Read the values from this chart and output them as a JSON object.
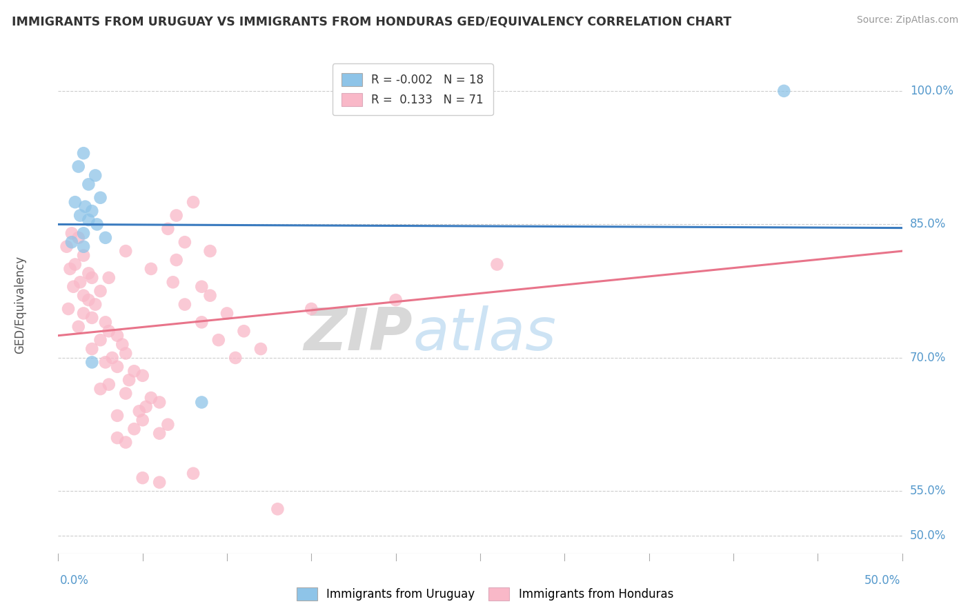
{
  "title": "IMMIGRANTS FROM URUGUAY VS IMMIGRANTS FROM HONDURAS GED/EQUIVALENCY CORRELATION CHART",
  "source": "Source: ZipAtlas.com",
  "ylabel": "GED/Equivalency",
  "ytick_vals": [
    50.0,
    55.0,
    70.0,
    85.0,
    100.0
  ],
  "ytick_labels": [
    "50.0%",
    "55.0%",
    "70.0%",
    "85.0%",
    "100.0%"
  ],
  "xmin": 0.0,
  "xmax": 50.0,
  "ymin": 48.0,
  "ymax": 104.0,
  "legend_blue_label": "R = -0.002   N = 18",
  "legend_pink_label": "R =  0.133   N = 71",
  "blue_color": "#8ec4e8",
  "pink_color": "#f9b8c8",
  "blue_line_color": "#3a7bbf",
  "pink_line_color": "#e8748a",
  "watermark_zip": "ZIP",
  "watermark_atlas": "atlas",
  "blue_scatter_x": [
    1.5,
    1.2,
    2.2,
    1.8,
    2.5,
    1.0,
    1.6,
    2.0,
    1.3,
    1.8,
    2.3,
    1.5,
    2.8,
    0.8,
    1.5,
    2.0,
    8.5,
    43.0
  ],
  "blue_scatter_y": [
    93.0,
    91.5,
    90.5,
    89.5,
    88.0,
    87.5,
    87.0,
    86.5,
    86.0,
    85.5,
    85.0,
    84.0,
    83.5,
    83.0,
    82.5,
    69.5,
    65.0,
    100.0
  ],
  "pink_scatter_x": [
    0.8,
    1.2,
    0.5,
    1.5,
    1.0,
    0.7,
    1.8,
    2.0,
    1.3,
    0.9,
    2.5,
    1.5,
    1.8,
    2.2,
    0.6,
    1.5,
    2.0,
    2.8,
    1.2,
    3.0,
    3.5,
    2.5,
    3.8,
    2.0,
    4.0,
    3.2,
    2.8,
    3.5,
    4.5,
    5.0,
    4.2,
    3.0,
    2.5,
    4.0,
    5.5,
    6.0,
    5.2,
    4.8,
    3.5,
    5.0,
    6.5,
    4.5,
    6.0,
    3.5,
    4.0,
    6.8,
    3.0,
    5.5,
    7.0,
    4.0,
    7.5,
    6.5,
    8.0,
    5.0,
    6.0,
    8.5,
    9.0,
    7.5,
    10.0,
    8.5,
    11.0,
    9.5,
    12.0,
    10.5,
    13.0,
    15.0,
    20.0,
    7.0,
    8.0,
    9.0,
    26.0
  ],
  "pink_scatter_y": [
    84.0,
    83.5,
    82.5,
    81.5,
    80.5,
    80.0,
    79.5,
    79.0,
    78.5,
    78.0,
    77.5,
    77.0,
    76.5,
    76.0,
    75.5,
    75.0,
    74.5,
    74.0,
    73.5,
    73.0,
    72.5,
    72.0,
    71.5,
    71.0,
    70.5,
    70.0,
    69.5,
    69.0,
    68.5,
    68.0,
    67.5,
    67.0,
    66.5,
    66.0,
    65.5,
    65.0,
    64.5,
    64.0,
    63.5,
    63.0,
    62.5,
    62.0,
    61.5,
    61.0,
    60.5,
    78.5,
    79.0,
    80.0,
    81.0,
    82.0,
    83.0,
    84.5,
    57.0,
    56.5,
    56.0,
    78.0,
    77.0,
    76.0,
    75.0,
    74.0,
    73.0,
    72.0,
    71.0,
    70.0,
    53.0,
    75.5,
    76.5,
    86.0,
    87.5,
    82.0,
    80.5
  ],
  "blue_line_x0": 0.0,
  "blue_line_x1": 50.0,
  "blue_line_y0": 85.0,
  "blue_line_y1": 84.6,
  "pink_line_x0": 0.0,
  "pink_line_x1": 50.0,
  "pink_line_y0": 72.5,
  "pink_line_y1": 82.0
}
